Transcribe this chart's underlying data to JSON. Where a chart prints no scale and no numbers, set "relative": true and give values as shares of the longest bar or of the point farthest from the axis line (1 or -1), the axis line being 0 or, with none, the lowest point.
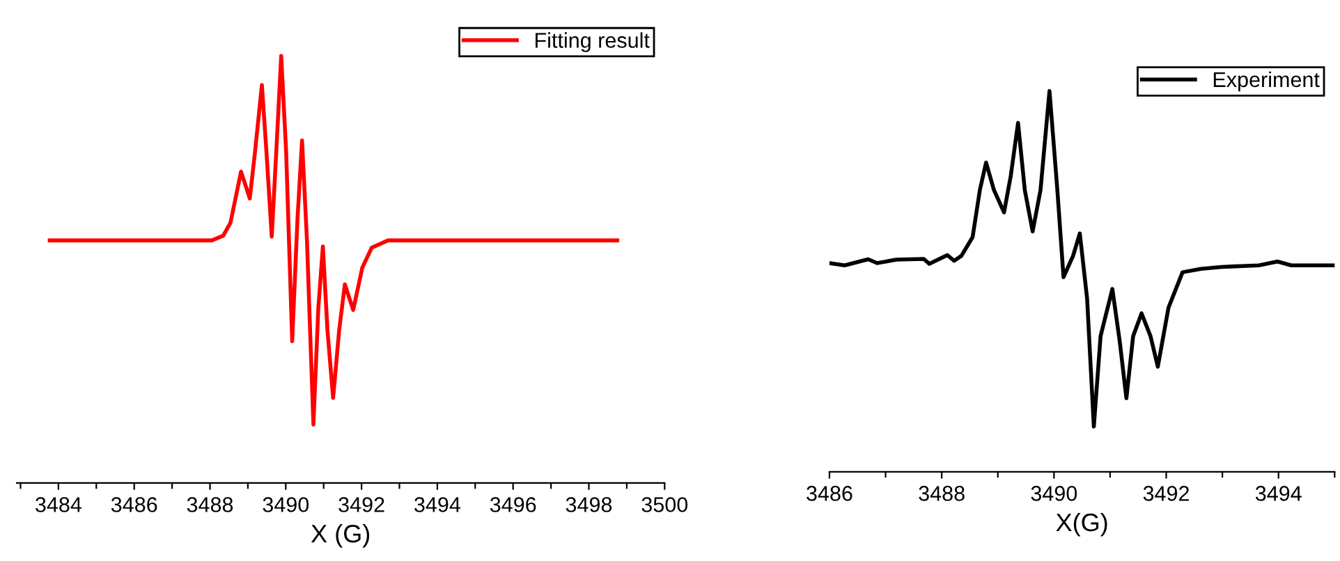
{
  "chart_data": [
    {
      "type": "line",
      "xlabel": "X (G)",
      "relative": true,
      "legend": "top right",
      "tick_labels": "x",
      "grid": false,
      "xlim": [
        3482.9,
        3500
      ],
      "xticks": [
        {
          "value": 3483,
          "label": null
        },
        3484,
        {
          "value": 3485,
          "label": null
        },
        3486,
        {
          "value": 3487,
          "label": null
        },
        3488,
        {
          "value": 3489,
          "label": null
        },
        3490,
        {
          "value": 3491,
          "label": null
        },
        3492,
        {
          "value": 3493,
          "label": null
        },
        3494,
        {
          "value": 3495,
          "label": null
        },
        3496,
        {
          "value": 3497,
          "label": null
        },
        3498,
        {
          "value": 3499,
          "label": null
        },
        3500
      ],
      "x": [
        3483.77,
        3488.05,
        3488.35,
        3488.54,
        3488.82,
        3489.05,
        3489.19,
        3489.37,
        3489.49,
        3489.63,
        3489.75,
        3489.88,
        3490.01,
        3490.17,
        3490.31,
        3490.43,
        3490.56,
        3490.73,
        3490.86,
        3490.98,
        3491.1,
        3491.25,
        3491.41,
        3491.56,
        3491.78,
        3492.02,
        3492.27,
        3492.7,
        3498.75
      ],
      "series": [
        {
          "name": "Fitting result",
          "color": "#ff0000",
          "values": [
            0.568,
            0.568,
            0.579,
            0.609,
            0.729,
            0.666,
            0.776,
            0.932,
            0.776,
            0.577,
            0.776,
            1.0,
            0.776,
            0.332,
            0.619,
            0.802,
            0.567,
            0.137,
            0.41,
            0.554,
            0.358,
            0.199,
            0.358,
            0.465,
            0.405,
            0.504,
            0.551,
            0.568,
            0.568
          ]
        }
      ]
    },
    {
      "type": "line",
      "xlabel": "X(G)",
      "relative": true,
      "legend": "top right",
      "tick_labels": "x",
      "grid": false,
      "xlim": [
        3486,
        3495
      ],
      "xticks": [
        3486,
        {
          "value": 3487,
          "label": null
        },
        3488,
        {
          "value": 3489,
          "label": null
        },
        3490,
        {
          "value": 3491,
          "label": null
        },
        3492,
        {
          "value": 3493,
          "label": null
        },
        3494,
        {
          "value": 3495,
          "label": null
        }
      ],
      "x": [
        3486.0,
        3486.27,
        3486.69,
        3486.85,
        3487.19,
        3487.68,
        3487.78,
        3488.1,
        3488.22,
        3488.35,
        3488.55,
        3488.68,
        3488.79,
        3488.93,
        3489.11,
        3489.23,
        3489.36,
        3489.48,
        3489.62,
        3489.76,
        3489.92,
        3490.06,
        3490.17,
        3490.34,
        3490.46,
        3490.59,
        3490.71,
        3490.83,
        3491.04,
        3491.17,
        3491.29,
        3491.41,
        3491.56,
        3491.72,
        3491.85,
        3492.04,
        3492.29,
        3492.62,
        3492.99,
        3493.65,
        3493.98,
        3494.23,
        3495.0
      ],
      "series": [
        {
          "name": "Experiment",
          "color": "#000000",
          "values": [
            0.548,
            0.542,
            0.558,
            0.548,
            0.557,
            0.559,
            0.546,
            0.569,
            0.554,
            0.567,
            0.616,
            0.74,
            0.812,
            0.74,
            0.681,
            0.777,
            0.916,
            0.74,
            0.631,
            0.74,
            1.0,
            0.74,
            0.511,
            0.567,
            0.626,
            0.455,
            0.119,
            0.356,
            0.48,
            0.344,
            0.193,
            0.356,
            0.416,
            0.356,
            0.276,
            0.431,
            0.524,
            0.533,
            0.538,
            0.542,
            0.552,
            0.542,
            0.542
          ]
        }
      ]
    }
  ]
}
